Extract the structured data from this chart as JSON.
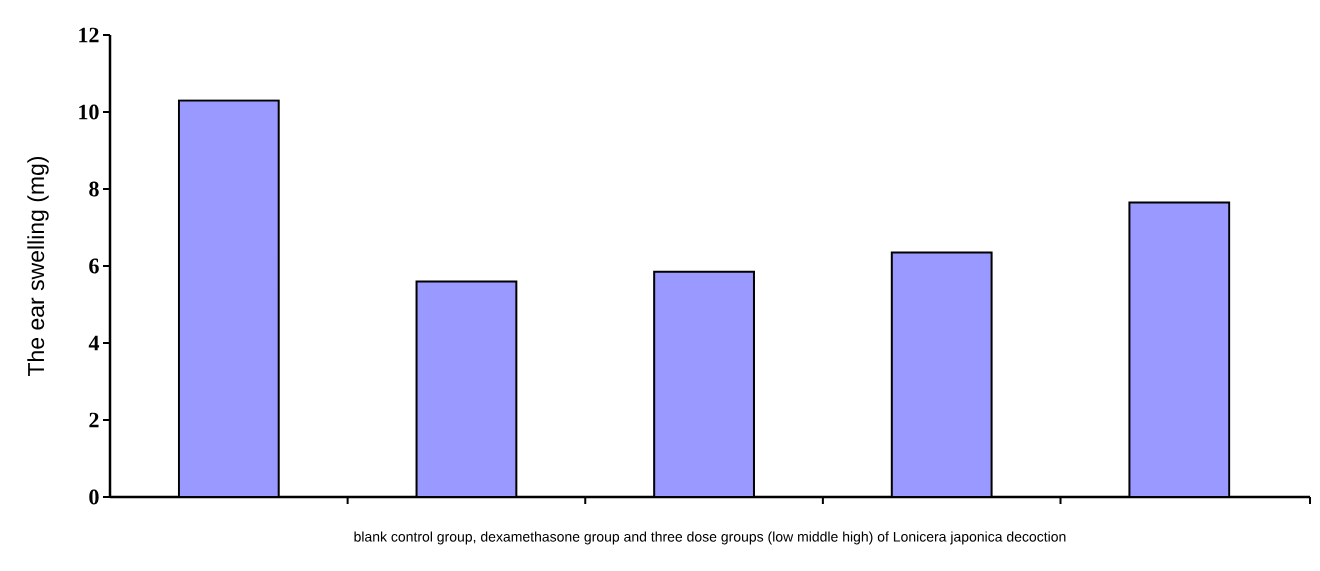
{
  "chart_data": {
    "type": "bar",
    "xlabel": "blank control group, dexamethasone group and three dose groups (low middle high) of Lonicera japonica decoction",
    "ylabel": "The ear swelling (mg)",
    "categories": [
      null,
      null,
      null,
      null,
      null
    ],
    "values": [
      10.3,
      5.6,
      5.85,
      6.35,
      7.65
    ],
    "color": "#9999ff",
    "ylim": [
      0,
      12
    ],
    "yticks": [
      0,
      2,
      4,
      6,
      8,
      10,
      12
    ],
    "grid": false
  }
}
